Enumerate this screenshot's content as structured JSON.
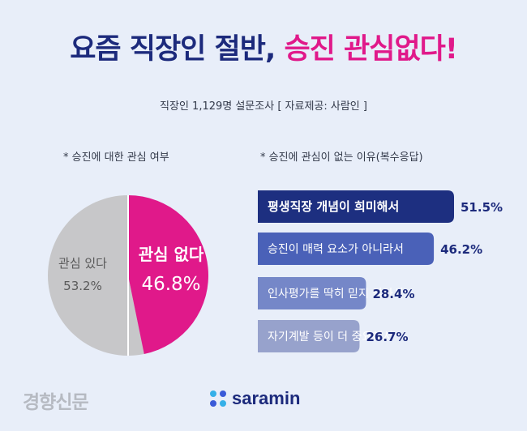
{
  "header": {
    "title_part1": "요즘 직장인 절반,",
    "title_part2": "승진 관심없다!",
    "subtitle": "직장인 1,129명 설문조사 [ 자료제공: 사람인 ]"
  },
  "colors": {
    "navy": "#1c2a7c",
    "magenta": "#e0198a",
    "gray_slice": "#c7c7c9",
    "bar_colors": [
      "#1d2f80",
      "#4a61b8",
      "#7587c8",
      "#97a2cc"
    ]
  },
  "chart_data": [
    {
      "type": "pie",
      "title": "* 승진에 대한 관심 여부",
      "slices": [
        {
          "label": "관심 있다",
          "value": 53.2,
          "value_label": "53.2%"
        },
        {
          "label": "관심 없다",
          "value": 46.8,
          "value_label": "46.8%"
        }
      ]
    },
    {
      "type": "bar",
      "orientation": "horizontal",
      "title": "* 승진에 관심이 없는 이유(복수응답)",
      "categories": [
        "평생직장 개념이 희미해서",
        "승진이 매력 요소가 아니라서",
        "인사평가를 딱히 믿지 않아서",
        "자기계발 등이 더 중요해서"
      ],
      "values": [
        51.5,
        46.2,
        28.4,
        26.7
      ],
      "value_labels": [
        "51.5%",
        "46.2%",
        "28.4%",
        "26.7%"
      ]
    }
  ],
  "footer": {
    "publisher": "경향신문",
    "brand": "saramin"
  }
}
